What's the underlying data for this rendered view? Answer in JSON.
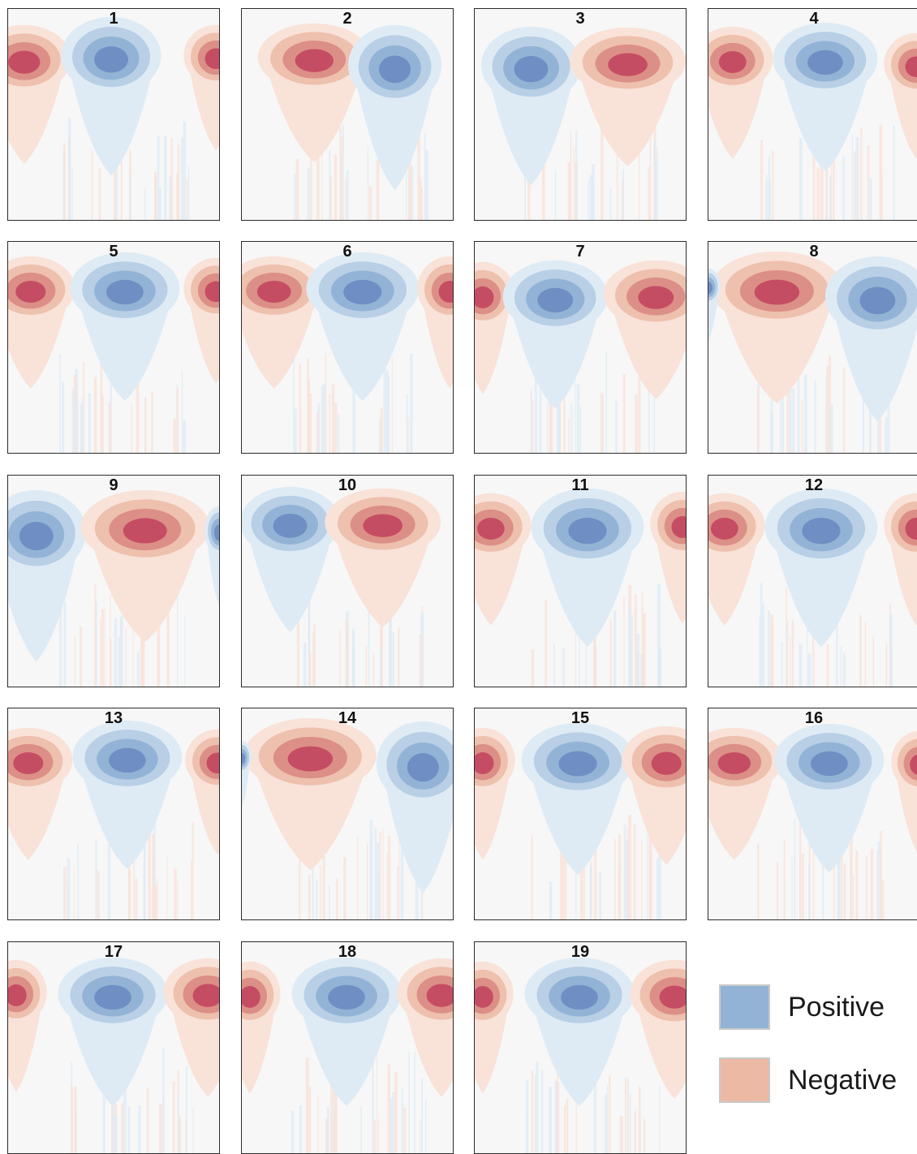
{
  "chart_data": {
    "type": "heatmap",
    "panels": [
      {
        "title": "1"
      },
      {
        "title": "2"
      },
      {
        "title": "3"
      },
      {
        "title": "4"
      },
      {
        "title": "5"
      },
      {
        "title": "6"
      },
      {
        "title": "7"
      },
      {
        "title": "8"
      },
      {
        "title": "9"
      },
      {
        "title": "10"
      },
      {
        "title": "11"
      },
      {
        "title": "12"
      },
      {
        "title": "13"
      },
      {
        "title": "14"
      },
      {
        "title": "15"
      },
      {
        "title": "16"
      },
      {
        "title": "17"
      },
      {
        "title": "18"
      },
      {
        "title": "19"
      }
    ],
    "legend": {
      "placement": "bottom-right",
      "items": [
        {
          "label": "Positive",
          "color": "#93b3d6"
        },
        {
          "label": "Negative",
          "color": "#ecb9a5"
        }
      ]
    }
  },
  "colors": {
    "positive_scale": [
      "#deebf5",
      "#b8cfe6",
      "#93b3d6",
      "#6f8fc4"
    ],
    "negative_scale": [
      "#f9e2d8",
      "#eec0ae",
      "#dc8f86",
      "#c54d63"
    ],
    "background": "#f7f7f7",
    "frame": "#2b2b2b"
  }
}
